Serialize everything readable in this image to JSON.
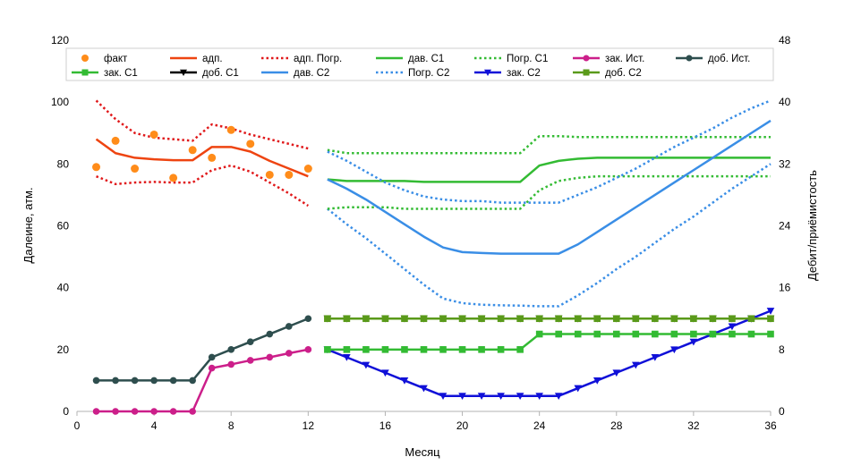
{
  "chart_data": {
    "type": "line",
    "xlabel": "Месяц",
    "ylabel_left": "Далеине, атм.",
    "ylabel_right": "Дебит/приёмистость",
    "xlim": [
      0,
      36
    ],
    "ylim_left": [
      0,
      120
    ],
    "ylim_right": [
      0,
      48
    ],
    "x_ticks": [
      0,
      4,
      8,
      12,
      16,
      20,
      24,
      28,
      32,
      36
    ],
    "y_ticks_left": [
      0,
      20,
      40,
      60,
      80,
      100,
      120
    ],
    "y_ticks_right": [
      0,
      8,
      16,
      24,
      32,
      40,
      48
    ],
    "grid": false,
    "legend_position": "top",
    "series": [
      {
        "name": "факт",
        "axis": "left",
        "color": "#ff8c1a",
        "style": "markers",
        "marker": "circle",
        "x": [
          1,
          2,
          3,
          4,
          5,
          6,
          7,
          8,
          9,
          10,
          11,
          12
        ],
        "y": [
          79,
          87.5,
          78.5,
          89.5,
          75.5,
          84.5,
          82,
          91,
          86.5,
          76.5,
          76.5,
          78.5
        ]
      },
      {
        "name": "адп.",
        "axis": "left",
        "color": "#ee4411",
        "style": "solid",
        "marker": "none",
        "x": [
          1,
          2,
          3,
          4,
          5,
          6,
          7,
          8,
          9,
          10,
          11,
          12
        ],
        "y": [
          88,
          83.5,
          82,
          81.5,
          81.2,
          81.2,
          85.5,
          85.5,
          84,
          81,
          78.5,
          76
        ]
      },
      {
        "name": "адп. Погр.",
        "axis": "left",
        "color": "#e0181a",
        "style": "dotted",
        "marker": "none",
        "x": [
          1,
          2,
          3,
          4,
          5,
          6,
          7,
          8,
          9,
          10,
          11,
          12
        ],
        "y": [
          100.5,
          94.5,
          90,
          88.5,
          88,
          87.5,
          92.8,
          91.5,
          89.5,
          88,
          86.5,
          85
        ]
      },
      {
        "name": "",
        "axis": "left",
        "color": "#e0181a",
        "style": "dotted",
        "marker": "none",
        "x": [
          1,
          2,
          3,
          4,
          5,
          6,
          7,
          8,
          9,
          10,
          11,
          12
        ],
        "y": [
          76,
          73.5,
          74,
          74.2,
          74,
          74,
          78,
          79.5,
          77.5,
          74,
          70.5,
          66.5
        ]
      },
      {
        "name": "дав. С1",
        "axis": "left",
        "color": "#33bb33",
        "style": "solid",
        "marker": "none",
        "x": [
          13,
          14,
          15,
          16,
          17,
          18,
          19,
          20,
          21,
          22,
          23,
          24,
          25,
          26,
          27,
          28,
          29,
          30,
          31,
          32,
          33,
          34,
          35,
          36
        ],
        "y": [
          75,
          74.5,
          74.5,
          74.5,
          74.5,
          74.2,
          74.2,
          74.2,
          74.2,
          74.2,
          74.2,
          79.5,
          81,
          81.7,
          82,
          82,
          82,
          82,
          82,
          82,
          82,
          82,
          82,
          82
        ]
      },
      {
        "name": "Погр. С1",
        "axis": "left",
        "color": "#33bb33",
        "style": "dotted",
        "marker": "none",
        "x": [
          13,
          14,
          15,
          16,
          17,
          18,
          19,
          20,
          21,
          22,
          23,
          24,
          25,
          26,
          27,
          28,
          29,
          30,
          31,
          32,
          33,
          34,
          35,
          36
        ],
        "y": [
          84.5,
          83.5,
          83.5,
          83.5,
          83.5,
          83.5,
          83.5,
          83.5,
          83.5,
          83.5,
          83.5,
          89,
          89,
          88.7,
          88.7,
          88.7,
          88.7,
          88.7,
          88.7,
          88.7,
          88.7,
          88.7,
          88.7,
          88.7
        ]
      },
      {
        "name": "",
        "axis": "left",
        "color": "#33bb33",
        "style": "dotted",
        "marker": "none",
        "x": [
          13,
          14,
          15,
          16,
          17,
          18,
          19,
          20,
          21,
          22,
          23,
          24,
          25,
          26,
          27,
          28,
          29,
          30,
          31,
          32,
          33,
          34,
          35,
          36
        ],
        "y": [
          65.5,
          66,
          66,
          66,
          65.5,
          65.5,
          65.5,
          65.5,
          65.5,
          65.5,
          65.5,
          71.5,
          74.5,
          75.5,
          76,
          76,
          76,
          76,
          76,
          76,
          76,
          76,
          76,
          76
        ]
      },
      {
        "name": "зак. Ист.",
        "axis": "left",
        "color": "#cc1f8a",
        "style": "solid",
        "marker": "circle",
        "x": [
          1,
          2,
          3,
          4,
          5,
          6,
          7,
          8,
          9,
          10,
          11,
          12
        ],
        "y": [
          0,
          0,
          0,
          0,
          0,
          0,
          14,
          15.2,
          16.5,
          17.5,
          18.8,
          20
        ]
      },
      {
        "name": "доб. Ист.",
        "axis": "left",
        "color": "#2e4e4e",
        "style": "solid",
        "marker": "circle",
        "x": [
          1,
          2,
          3,
          4,
          5,
          6,
          7,
          8,
          9,
          10,
          11,
          12
        ],
        "y": [
          10,
          10,
          10,
          10,
          10,
          10,
          17.5,
          20,
          22.5,
          25,
          27.5,
          30
        ]
      },
      {
        "name": "зак. С1",
        "axis": "left",
        "color": "#33bb33",
        "style": "solid",
        "marker": "square",
        "x": [
          13,
          14,
          15,
          16,
          17,
          18,
          19,
          20,
          21,
          22,
          23,
          24,
          25,
          26,
          27,
          28,
          29,
          30,
          31,
          32,
          33,
          34,
          35,
          36
        ],
        "y": [
          20,
          20,
          20,
          20,
          20,
          20,
          20,
          20,
          20,
          20,
          20,
          25,
          25,
          25,
          25,
          25,
          25,
          25,
          25,
          25,
          25,
          25,
          25,
          25
        ]
      },
      {
        "name": "доб. С1",
        "axis": "left",
        "color": "#000000",
        "style": "solid",
        "marker": "triangle-down",
        "x": [
          13,
          14,
          15,
          16,
          17,
          18,
          19,
          20,
          21,
          22,
          23,
          24,
          25,
          26,
          27,
          28,
          29,
          30,
          31,
          32,
          33,
          34,
          35,
          36
        ],
        "y": [
          30,
          30,
          30,
          30,
          30,
          30,
          30,
          30,
          30,
          30,
          30,
          30,
          30,
          30,
          30,
          30,
          30,
          30,
          30,
          30,
          30,
          30,
          30,
          30
        ]
      },
      {
        "name": "дав. С2",
        "axis": "left",
        "color": "#3a8ee6",
        "style": "solid",
        "marker": "none",
        "x": [
          13,
          14,
          15,
          16,
          17,
          18,
          19,
          20,
          21,
          22,
          23,
          24,
          25,
          26,
          27,
          28,
          29,
          30,
          31,
          32,
          33,
          34,
          35,
          36
        ],
        "y": [
          75,
          72,
          68.5,
          64.5,
          60.5,
          56.5,
          53,
          51.5,
          51.2,
          51,
          51,
          51,
          51,
          54,
          58,
          62,
          66,
          70,
          74,
          78,
          82,
          86,
          90,
          94
        ]
      },
      {
        "name": "Погр. С2",
        "axis": "left",
        "color": "#3a8ee6",
        "style": "dotted",
        "marker": "none",
        "x": [
          13,
          14,
          15,
          16,
          17,
          18,
          19,
          20,
          21,
          22,
          23,
          24,
          25,
          26,
          27,
          28,
          29,
          30,
          31,
          32,
          33,
          34,
          35,
          36
        ],
        "y": [
          84,
          81,
          77.5,
          74,
          71.5,
          69.5,
          68.5,
          68,
          68,
          67.5,
          67.5,
          67.5,
          67.5,
          70,
          72.5,
          75.5,
          78.5,
          82,
          85.5,
          88.5,
          91.5,
          95,
          98,
          100.5
        ]
      },
      {
        "name": "",
        "axis": "left",
        "color": "#3a8ee6",
        "style": "dotted",
        "marker": "none",
        "x": [
          13,
          14,
          15,
          16,
          17,
          18,
          19,
          20,
          21,
          22,
          23,
          24,
          25,
          26,
          27,
          28,
          29,
          30,
          31,
          32,
          33,
          34,
          35,
          36
        ],
        "y": [
          65.5,
          60.5,
          56,
          51,
          46,
          41,
          36.5,
          35,
          34.5,
          34.3,
          34.2,
          34,
          34,
          37.5,
          41.5,
          46,
          50,
          54.5,
          59,
          63,
          67.5,
          72,
          76,
          80
        ]
      },
      {
        "name": "зак. С2",
        "axis": "left",
        "color": "#1010d8",
        "style": "solid",
        "marker": "triangle-down",
        "x": [
          13,
          14,
          15,
          16,
          17,
          18,
          19,
          20,
          21,
          22,
          23,
          24,
          25,
          26,
          27,
          28,
          29,
          30,
          31,
          32,
          33,
          34,
          35,
          36
        ],
        "y": [
          20,
          17.5,
          15,
          12.5,
          10,
          7.5,
          5,
          5,
          5,
          5,
          5,
          5,
          5,
          7.5,
          10,
          12.5,
          15,
          17.5,
          20,
          22.5,
          25,
          27.5,
          30,
          32.5
        ]
      },
      {
        "name": "доб. С2",
        "axis": "left",
        "color": "#5a9a1a",
        "style": "solid",
        "marker": "square",
        "x": [
          13,
          14,
          15,
          16,
          17,
          18,
          19,
          20,
          21,
          22,
          23,
          24,
          25,
          26,
          27,
          28,
          29,
          30,
          31,
          32,
          33,
          34,
          35,
          36
        ],
        "y": [
          30,
          30,
          30,
          30,
          30,
          30,
          30,
          30,
          30,
          30,
          30,
          30,
          30,
          30,
          30,
          30,
          30,
          30,
          30,
          30,
          30,
          30,
          30,
          30
        ]
      }
    ],
    "legend_order": [
      "факт",
      "адп.",
      "адп. Погр.",
      "дав. С1",
      "Погр. С1",
      "зак. Ист.",
      "доб. Ист.",
      "зак. С1",
      "доб. С1",
      "дав. С2",
      "Погр. С2",
      "зак. С2",
      "доб. С2"
    ],
    "draw_order": [
      13,
      10,
      14,
      4,
      5,
      6,
      11,
      12,
      1,
      2,
      3,
      7,
      8,
      15,
      9,
      0
    ]
  }
}
